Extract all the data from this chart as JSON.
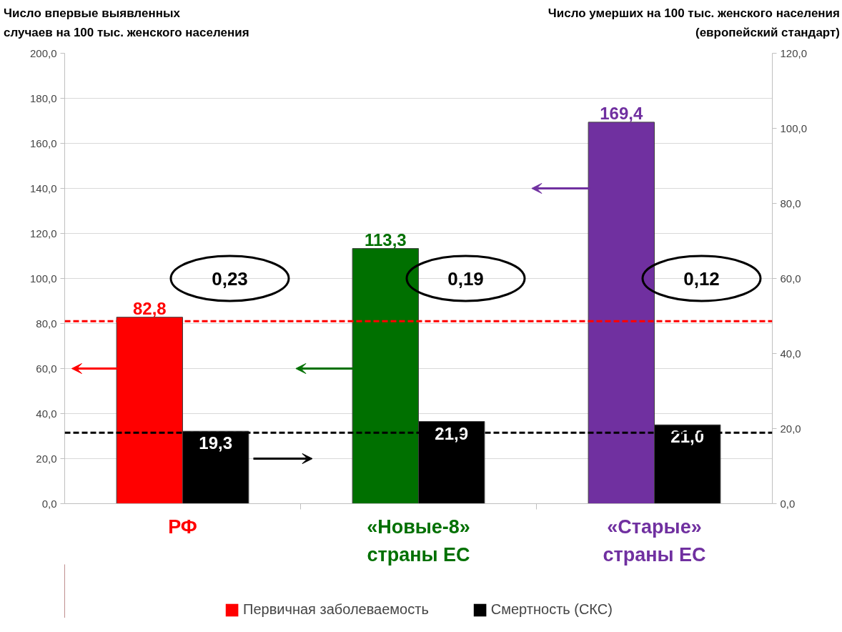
{
  "chart_data": {
    "type": "bar",
    "ylabel": "Число впервые выявленных\nслучаев на 100 тыс. женского населения",
    "y2label": "Число умерших на 100 тыс. женского населения\n(европейский стандарт)",
    "categories": [
      "РФ",
      "«Новые-8»\nстраны ЕС",
      "«Старые»\nстраны ЕС"
    ],
    "series": [
      {
        "name": "Первичная заболеваемость",
        "colors": [
          "#ff0000",
          "#007000",
          "#7030a0"
        ],
        "values": [
          82.8,
          113.3,
          169.4
        ],
        "value_labels": [
          "82,8",
          "113,3",
          "169,4"
        ]
      },
      {
        "name": "Смертность (СКС)",
        "color": "#000000",
        "axis": "y2",
        "values": [
          19.3,
          21.9,
          21.0
        ],
        "value_labels": [
          "19,3",
          "21,9",
          "21,0"
        ]
      }
    ],
    "ylim": [
      0,
      200
    ],
    "yticks": [
      {
        "value": 0,
        "label": "0,0"
      },
      {
        "value": 20,
        "label": "20,0"
      },
      {
        "value": 40,
        "label": "40,0"
      },
      {
        "value": 60,
        "label": "60,0"
      },
      {
        "value": 80,
        "label": "80,0"
      },
      {
        "value": 100,
        "label": "100,0"
      },
      {
        "value": 120,
        "label": "120,0"
      },
      {
        "value": 140,
        "label": "140,0"
      },
      {
        "value": 160,
        "label": "160,0"
      },
      {
        "value": 180,
        "label": "180,0"
      },
      {
        "value": 200,
        "label": "200,0"
      }
    ],
    "y2lim": [
      0,
      120
    ],
    "y2ticks": [
      {
        "value": 0,
        "label": "0,0"
      },
      {
        "value": 20,
        "label": "20,0"
      },
      {
        "value": 40,
        "label": "40,0"
      },
      {
        "value": 60,
        "label": "60,0"
      },
      {
        "value": 80,
        "label": "80,0"
      },
      {
        "value": 100,
        "label": "100,0"
      },
      {
        "value": 120,
        "label": "120,0"
      }
    ],
    "ref_lines": [
      {
        "axis": "y",
        "value": 81.0,
        "color": "#ff0000",
        "line_style": "dashed"
      },
      {
        "axis": "y2",
        "value": 18.9,
        "color": "#000000",
        "line_style": "dashed"
      }
    ],
    "annotations": [
      "0,23",
      "0,19",
      "0,12"
    ],
    "grid": "y",
    "legend": "bottom"
  }
}
